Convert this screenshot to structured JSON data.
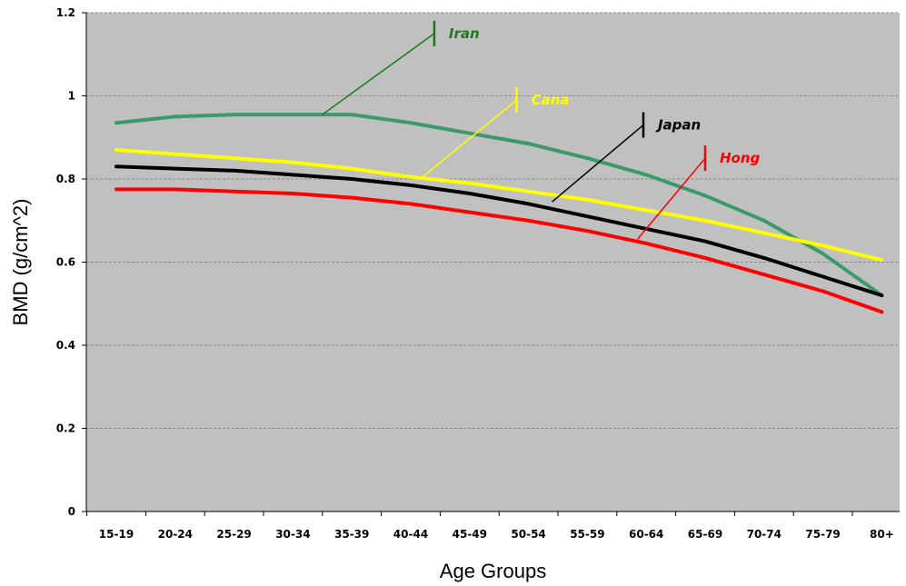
{
  "chart_data": {
    "type": "line",
    "xlabel": "Age Groups",
    "ylabel": "BMD (g/cm^2)",
    "categories": [
      "15-19",
      "20-24",
      "25-29",
      "30-34",
      "35-39",
      "40-44",
      "45-49",
      "50-54",
      "55-59",
      "60-64",
      "65-69",
      "70-74",
      "75-79",
      "80+"
    ],
    "ylim": [
      0,
      1.2
    ],
    "yticks": [
      0,
      0.2,
      0.4,
      0.6,
      0.8,
      1,
      1.2
    ],
    "ytick_labels": [
      "0",
      "0.2",
      "0.4",
      "0.6",
      "0.8",
      "1",
      "1.2"
    ],
    "grid": true,
    "background_color": "#c0c0c0",
    "series": [
      {
        "name": "Iran",
        "color": "#3a9a6a",
        "label_color": "#1a7a1a",
        "values": [
          0.935,
          0.95,
          0.955,
          0.955,
          0.955,
          0.935,
          0.91,
          0.885,
          0.85,
          0.81,
          0.76,
          0.7,
          0.62,
          0.52
        ]
      },
      {
        "name": "Cana",
        "color": "#ffff00",
        "label_color": "#ffff00",
        "values": [
          0.87,
          0.86,
          0.85,
          0.84,
          0.825,
          0.805,
          0.79,
          0.77,
          0.75,
          0.725,
          0.7,
          0.67,
          0.64,
          0.605
        ]
      },
      {
        "name": "Japan",
        "color": "#000000",
        "label_color": "#000000",
        "values": [
          0.83,
          0.825,
          0.82,
          0.81,
          0.8,
          0.785,
          0.765,
          0.74,
          0.71,
          0.68,
          0.65,
          0.61,
          0.565,
          0.52
        ]
      },
      {
        "name": "Hong",
        "color": "#ff0000",
        "label_color": "#ff0000",
        "values": [
          0.775,
          0.775,
          0.77,
          0.765,
          0.755,
          0.74,
          0.72,
          0.7,
          0.675,
          0.645,
          0.61,
          0.57,
          0.53,
          0.48
        ]
      }
    ],
    "callouts": [
      {
        "series": "Iran",
        "x": 3.5,
        "y": 0.955,
        "tip_x": 5.4,
        "tip_y": 1.15
      },
      {
        "series": "Cana",
        "x": 5.2,
        "y": 0.805,
        "tip_x": 6.8,
        "tip_y": 0.99
      },
      {
        "series": "Japan",
        "x": 7.4,
        "y": 0.745,
        "tip_x": 8.95,
        "tip_y": 0.93
      },
      {
        "series": "Hong",
        "x": 8.85,
        "y": 0.655,
        "tip_x": 10.0,
        "tip_y": 0.85
      }
    ]
  }
}
